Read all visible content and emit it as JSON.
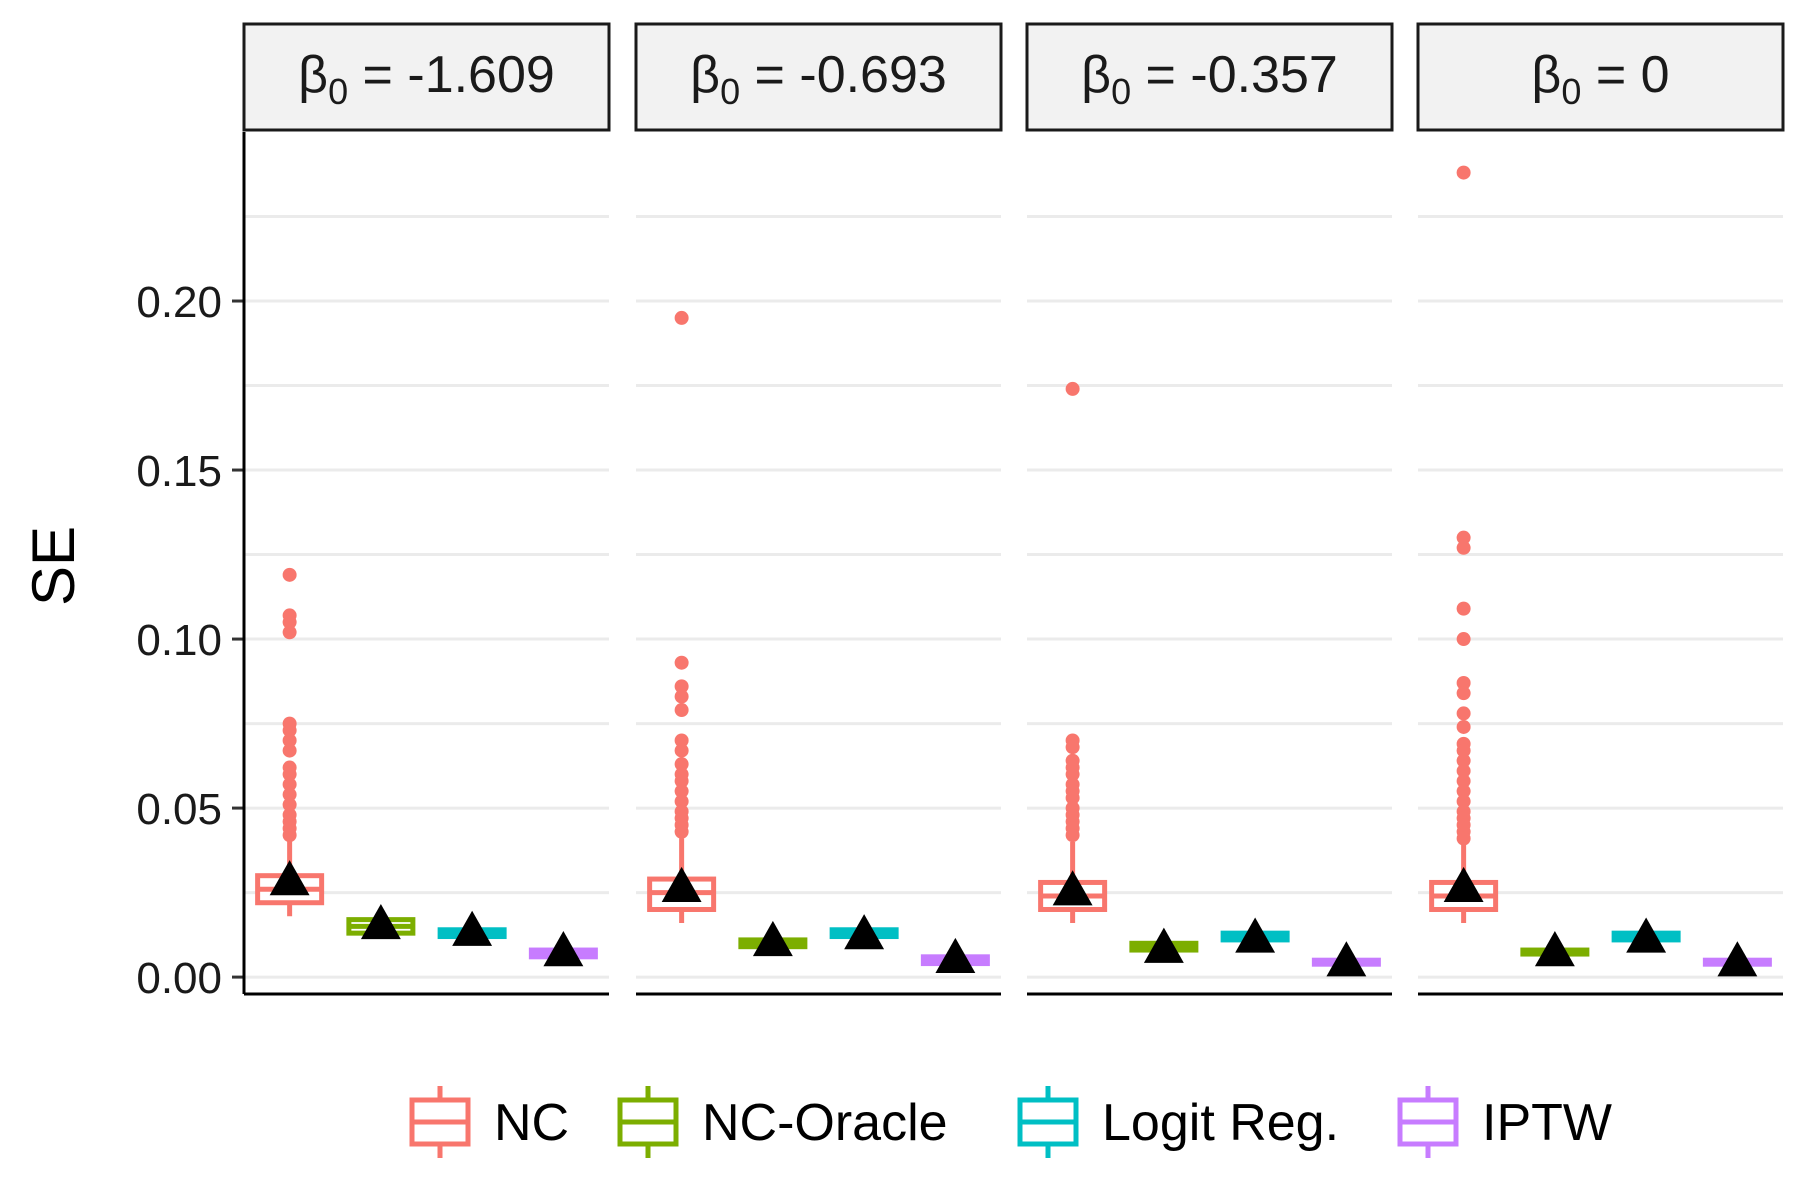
{
  "chart_data": {
    "type": "boxplot",
    "title": "",
    "xlabel": "",
    "ylabel": "SE",
    "ylim": [
      -0.005,
      0.25
    ],
    "yticks": [
      0.0,
      0.05,
      0.1,
      0.15,
      0.2
    ],
    "ytick_labels": [
      "0.00",
      "0.05",
      "0.10",
      "0.15",
      "0.20"
    ],
    "grid": true,
    "legend_position": "bottom",
    "colors": {
      "NC": "#F8766D",
      "NC-Oracle": "#7CAE00",
      "Logit Reg.": "#00BFC4",
      "IPTW": "#C77CFF"
    },
    "mean_marker": "black-triangle",
    "series_names": [
      "NC",
      "NC-Oracle",
      "Logit Reg.",
      "IPTW"
    ],
    "facets": [
      {
        "label_symbol": "β",
        "label_sub": "0",
        "label_value": " = -1.609",
        "boxes": [
          {
            "series": "NC",
            "min": 0.018,
            "q1": 0.022,
            "median": 0.026,
            "q3": 0.03,
            "max": 0.041,
            "mean": 0.029,
            "outliers": [
              0.119,
              0.107,
              0.105,
              0.102,
              0.075,
              0.073,
              0.07,
              0.067,
              0.062,
              0.06,
              0.057,
              0.054,
              0.051,
              0.048,
              0.046,
              0.044,
              0.042
            ]
          },
          {
            "series": "NC-Oracle",
            "min": 0.012,
            "q1": 0.013,
            "median": 0.015,
            "q3": 0.017,
            "max": 0.019,
            "mean": 0.016,
            "outliers": []
          },
          {
            "series": "Logit Reg.",
            "min": 0.011,
            "q1": 0.012,
            "median": 0.013,
            "q3": 0.014,
            "max": 0.015,
            "mean": 0.014,
            "outliers": []
          },
          {
            "series": "IPTW",
            "min": 0.005,
            "q1": 0.006,
            "median": 0.007,
            "q3": 0.008,
            "max": 0.009,
            "mean": 0.008,
            "outliers": []
          }
        ]
      },
      {
        "label_symbol": "β",
        "label_sub": "0",
        "label_value": " = -0.693",
        "boxes": [
          {
            "series": "NC",
            "min": 0.016,
            "q1": 0.02,
            "median": 0.025,
            "q3": 0.029,
            "max": 0.041,
            "mean": 0.027,
            "outliers": [
              0.195,
              0.093,
              0.086,
              0.083,
              0.079,
              0.07,
              0.067,
              0.063,
              0.06,
              0.058,
              0.055,
              0.052,
              0.049,
              0.047,
              0.045,
              0.043
            ]
          },
          {
            "series": "NC-Oracle",
            "min": 0.008,
            "q1": 0.009,
            "median": 0.01,
            "q3": 0.011,
            "max": 0.012,
            "mean": 0.011,
            "outliers": []
          },
          {
            "series": "Logit Reg.",
            "min": 0.011,
            "q1": 0.012,
            "median": 0.013,
            "q3": 0.014,
            "max": 0.015,
            "mean": 0.013,
            "outliers": []
          },
          {
            "series": "IPTW",
            "min": 0.003,
            "q1": 0.004,
            "median": 0.005,
            "q3": 0.006,
            "max": 0.007,
            "mean": 0.006,
            "outliers": []
          }
        ]
      },
      {
        "label_symbol": "β",
        "label_sub": "0",
        "label_value": " = -0.357",
        "boxes": [
          {
            "series": "NC",
            "min": 0.016,
            "q1": 0.02,
            "median": 0.024,
            "q3": 0.028,
            "max": 0.04,
            "mean": 0.026,
            "outliers": [
              0.174,
              0.07,
              0.068,
              0.064,
              0.062,
              0.06,
              0.057,
              0.055,
              0.053,
              0.05,
              0.048,
              0.046,
              0.044,
              0.042
            ]
          },
          {
            "series": "NC-Oracle",
            "min": 0.007,
            "q1": 0.008,
            "median": 0.009,
            "q3": 0.01,
            "max": 0.011,
            "mean": 0.009,
            "outliers": []
          },
          {
            "series": "Logit Reg.",
            "min": 0.01,
            "q1": 0.011,
            "median": 0.012,
            "q3": 0.013,
            "max": 0.014,
            "mean": 0.012,
            "outliers": []
          },
          {
            "series": "IPTW",
            "min": 0.003,
            "q1": 0.004,
            "median": 0.004,
            "q3": 0.005,
            "max": 0.006,
            "mean": 0.005,
            "outliers": []
          }
        ]
      },
      {
        "label_symbol": "β",
        "label_sub": "0",
        "label_value": " = 0",
        "boxes": [
          {
            "series": "NC",
            "min": 0.016,
            "q1": 0.02,
            "median": 0.024,
            "q3": 0.028,
            "max": 0.04,
            "mean": 0.027,
            "outliers": [
              0.238,
              0.13,
              0.127,
              0.109,
              0.1,
              0.087,
              0.084,
              0.078,
              0.074,
              0.069,
              0.067,
              0.064,
              0.061,
              0.058,
              0.055,
              0.052,
              0.049,
              0.047,
              0.045,
              0.043,
              0.041
            ]
          },
          {
            "series": "NC-Oracle",
            "min": 0.006,
            "q1": 0.007,
            "median": 0.007,
            "q3": 0.008,
            "max": 0.009,
            "mean": 0.008,
            "outliers": []
          },
          {
            "series": "Logit Reg.",
            "min": 0.01,
            "q1": 0.011,
            "median": 0.012,
            "q3": 0.013,
            "max": 0.014,
            "mean": 0.012,
            "outliers": []
          },
          {
            "series": "IPTW",
            "min": 0.003,
            "q1": 0.004,
            "median": 0.004,
            "q3": 0.005,
            "max": 0.006,
            "mean": 0.005,
            "outliers": []
          }
        ]
      }
    ],
    "legend": [
      {
        "label": "NC",
        "color": "#F8766D"
      },
      {
        "label": "NC-Oracle",
        "color": "#7CAE00"
      },
      {
        "label": "Logit Reg.",
        "color": "#00BFC4"
      },
      {
        "label": "IPTW",
        "color": "#C77CFF"
      }
    ]
  }
}
